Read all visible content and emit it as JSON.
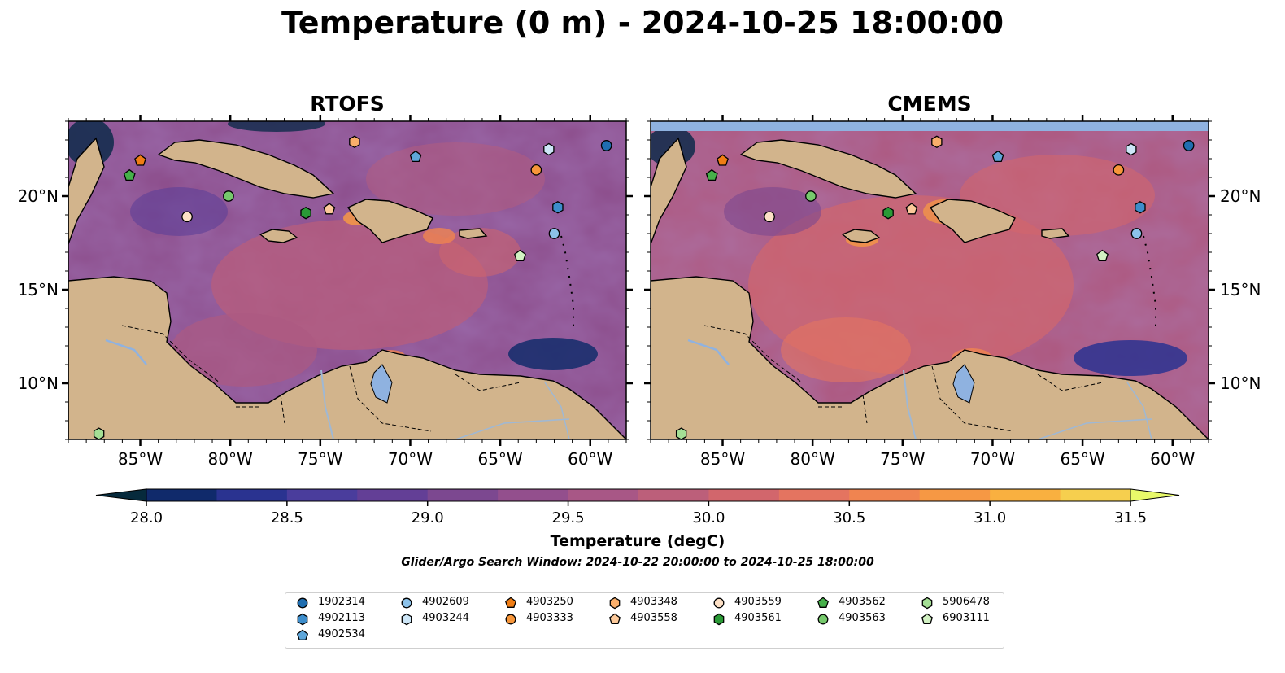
{
  "title": "Temperature (0 m) - 2024-10-25 18:00:00",
  "panels": [
    {
      "title": "RTOFS",
      "has_missing_band": false
    },
    {
      "title": "CMEMS",
      "has_missing_band": true
    }
  ],
  "lon_ticks": [
    "85°W",
    "80°W",
    "75°W",
    "70°W",
    "65°W",
    "60°W"
  ],
  "lat_ticks": [
    "20°N",
    "15°N",
    "10°N"
  ],
  "map_extent": {
    "lon": [
      -89,
      -58
    ],
    "lat": [
      7,
      24
    ]
  },
  "colorbar": {
    "label": "Temperature (degC)",
    "min": 28.0,
    "max": 31.5,
    "tick_labels": [
      "28.0",
      "28.5",
      "29.0",
      "29.5",
      "30.0",
      "30.5",
      "31.0",
      "31.5"
    ],
    "colors": [
      "#062a3c",
      "#102a6b",
      "#2a3390",
      "#4a3d9c",
      "#633f96",
      "#7c4890",
      "#934f8d",
      "#a85786",
      "#bc5f7a",
      "#d2666c",
      "#e47460",
      "#f08450",
      "#f69844",
      "#f9b040",
      "#f6cf4e",
      "#e8f96a"
    ]
  },
  "search_window": "Glider/Argo Search Window: 2024-10-22 20:00:00 to 2024-10-25 18:00:00",
  "colors": {
    "land": "#d2b48c",
    "missing": "#8fb2e0",
    "lake": "#8fb2e0"
  },
  "legend": [
    {
      "id": "1902314",
      "shape": "circle",
      "color": "#1f6eb0"
    },
    {
      "id": "4902113",
      "shape": "hexagon",
      "color": "#3d8dcb"
    },
    {
      "id": "4902534",
      "shape": "pentagon",
      "color": "#5ea6da"
    },
    {
      "id": "4902609",
      "shape": "circle",
      "color": "#8cc2ea"
    },
    {
      "id": "4903244",
      "shape": "hexagon",
      "color": "#cde6f7"
    },
    {
      "id": "4903250",
      "shape": "pentagon",
      "color": "#f07d14"
    },
    {
      "id": "4903333",
      "shape": "circle",
      "color": "#f7963a"
    },
    {
      "id": "4903348",
      "shape": "hexagon",
      "color": "#f9ae6b"
    },
    {
      "id": "4903558",
      "shape": "pentagon",
      "color": "#fcc99a"
    },
    {
      "id": "4903559",
      "shape": "circle",
      "color": "#fde0c6"
    },
    {
      "id": "4903561",
      "shape": "hexagon",
      "color": "#2a9a36"
    },
    {
      "id": "4903562",
      "shape": "pentagon",
      "color": "#46b04a"
    },
    {
      "id": "4903563",
      "shape": "circle",
      "color": "#76c96c"
    },
    {
      "id": "5906478",
      "shape": "hexagon",
      "color": "#a4df95"
    },
    {
      "id": "6903111",
      "shape": "pentagon",
      "color": "#d2f1c3"
    }
  ],
  "markers": [
    {
      "id": "1902314",
      "lon": -59.1,
      "lat": 22.7
    },
    {
      "id": "4903244",
      "lon": -62.3,
      "lat": 22.5
    },
    {
      "id": "4902534",
      "lon": -69.7,
      "lat": 22.1
    },
    {
      "id": "4903348",
      "lon": -73.1,
      "lat": 22.9
    },
    {
      "id": "4903250",
      "lon": -85.0,
      "lat": 21.9
    },
    {
      "id": "4903333",
      "lon": -63.0,
      "lat": 21.4
    },
    {
      "id": "4903562",
      "lon": -85.6,
      "lat": 21.1
    },
    {
      "id": "4903563",
      "lon": -80.1,
      "lat": 20.0
    },
    {
      "id": "4903559",
      "lon": -82.4,
      "lat": 18.9
    },
    {
      "id": "4903561",
      "lon": -75.8,
      "lat": 19.1
    },
    {
      "id": "4903558",
      "lon": -74.5,
      "lat": 19.3
    },
    {
      "id": "4902113",
      "lon": -61.8,
      "lat": 19.4
    },
    {
      "id": "4902609",
      "lon": -62.0,
      "lat": 18.0
    },
    {
      "id": "6903111",
      "lon": -63.9,
      "lat": 16.8
    },
    {
      "id": "5906478",
      "lon": -87.3,
      "lat": 7.3
    }
  ]
}
